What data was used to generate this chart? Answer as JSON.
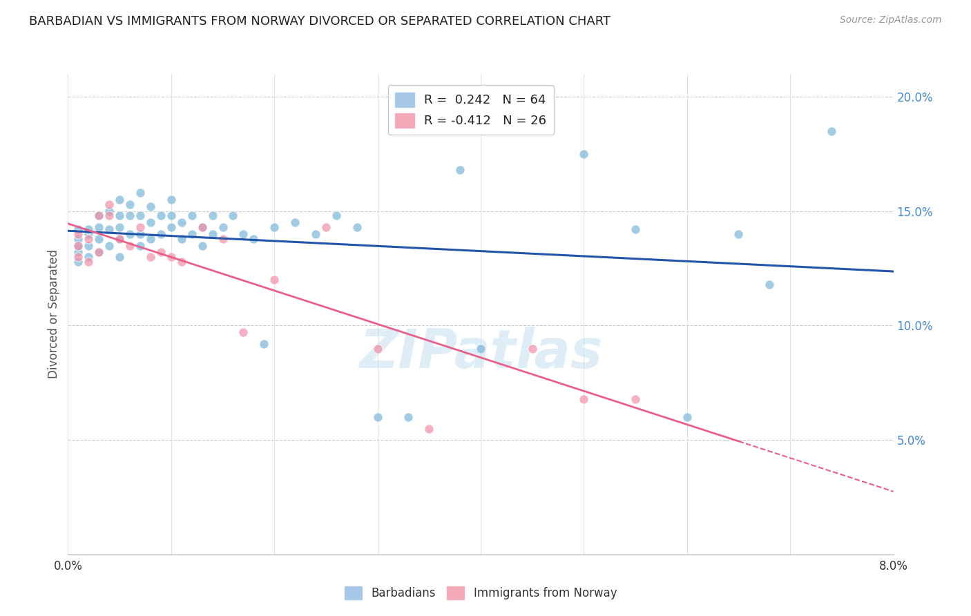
{
  "title": "BARBADIAN VS IMMIGRANTS FROM NORWAY DIVORCED OR SEPARATED CORRELATION CHART",
  "source": "Source: ZipAtlas.com",
  "ylabel": "Divorced or Separated",
  "x_min": 0.0,
  "x_max": 0.08,
  "y_min": 0.0,
  "y_max": 0.21,
  "y_ticks": [
    0.05,
    0.1,
    0.15,
    0.2
  ],
  "y_tick_labels": [
    "5.0%",
    "10.0%",
    "15.0%",
    "20.0%"
  ],
  "legend_entries": [
    {
      "label": "R =  0.242   N = 64",
      "color": "#a8c8e8"
    },
    {
      "label": "R = -0.412   N = 26",
      "color": "#f4aab8"
    }
  ],
  "barbadian_color": "#7ab4d8",
  "norway_color": "#f090a8",
  "trendline_barbadian_color": "#2255aa",
  "trendline_norway_color": "#e8608a",
  "background_color": "#ffffff",
  "watermark": "ZIPatlas",
  "barbadian_x": [
    0.001,
    0.001,
    0.001,
    0.001,
    0.001,
    0.002,
    0.002,
    0.002,
    0.002,
    0.003,
    0.003,
    0.003,
    0.003,
    0.004,
    0.004,
    0.004,
    0.005,
    0.005,
    0.005,
    0.005,
    0.005,
    0.006,
    0.006,
    0.006,
    0.007,
    0.007,
    0.007,
    0.007,
    0.008,
    0.008,
    0.008,
    0.009,
    0.009,
    0.01,
    0.01,
    0.01,
    0.011,
    0.011,
    0.012,
    0.012,
    0.013,
    0.013,
    0.014,
    0.014,
    0.015,
    0.016,
    0.017,
    0.018,
    0.019,
    0.02,
    0.022,
    0.024,
    0.026,
    0.028,
    0.03,
    0.033,
    0.038,
    0.04,
    0.05,
    0.055,
    0.06,
    0.065,
    0.068,
    0.074
  ],
  "barbadian_y": [
    0.128,
    0.132,
    0.135,
    0.138,
    0.142,
    0.13,
    0.135,
    0.14,
    0.142,
    0.132,
    0.138,
    0.143,
    0.148,
    0.135,
    0.142,
    0.15,
    0.13,
    0.138,
    0.143,
    0.148,
    0.155,
    0.14,
    0.148,
    0.153,
    0.135,
    0.14,
    0.148,
    0.158,
    0.138,
    0.145,
    0.152,
    0.14,
    0.148,
    0.143,
    0.148,
    0.155,
    0.138,
    0.145,
    0.14,
    0.148,
    0.135,
    0.143,
    0.14,
    0.148,
    0.143,
    0.148,
    0.14,
    0.138,
    0.092,
    0.143,
    0.145,
    0.14,
    0.148,
    0.143,
    0.06,
    0.06,
    0.168,
    0.09,
    0.175,
    0.142,
    0.06,
    0.14,
    0.118,
    0.185
  ],
  "norway_x": [
    0.001,
    0.001,
    0.001,
    0.002,
    0.002,
    0.003,
    0.003,
    0.004,
    0.004,
    0.005,
    0.006,
    0.007,
    0.008,
    0.009,
    0.01,
    0.011,
    0.013,
    0.015,
    0.017,
    0.02,
    0.025,
    0.03,
    0.035,
    0.045,
    0.05,
    0.055
  ],
  "norway_y": [
    0.13,
    0.135,
    0.14,
    0.128,
    0.138,
    0.132,
    0.148,
    0.148,
    0.153,
    0.138,
    0.135,
    0.143,
    0.13,
    0.132,
    0.13,
    0.128,
    0.143,
    0.138,
    0.097,
    0.12,
    0.143,
    0.09,
    0.055,
    0.09,
    0.068,
    0.068
  ],
  "norway_trendline_solid_end": 0.065,
  "norway_trendline_dashed_end": 0.08
}
